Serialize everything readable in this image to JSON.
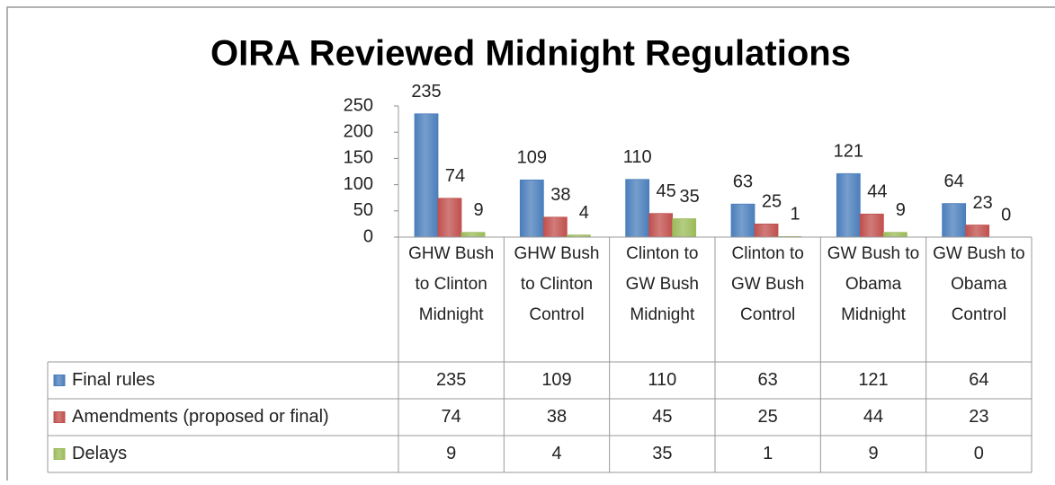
{
  "chart_data": {
    "type": "bar",
    "title": "OIRA Reviewed Midnight Regulations",
    "categories": [
      "GHW Bush to Clinton Midnight",
      "GHW Bush to Clinton Control",
      "Clinton to GW Bush Midnight",
      "Clinton to GW Bush Control",
      "GW Bush to Obama Midnight",
      "GW Bush to Obama Control"
    ],
    "series": [
      {
        "name": "Final rules",
        "color": "#4a7ebb",
        "values": [
          235,
          109,
          110,
          63,
          121,
          64
        ]
      },
      {
        "name": "Amendments (proposed or final)",
        "color": "#c0504d",
        "values": [
          74,
          38,
          45,
          25,
          44,
          23
        ]
      },
      {
        "name": "Delays",
        "color": "#9bbb59",
        "values": [
          9,
          4,
          35,
          1,
          9,
          0
        ]
      }
    ],
    "ylim": [
      0,
      250
    ],
    "yticks": [
      0,
      50,
      100,
      150,
      200,
      250
    ],
    "data_table": true
  }
}
